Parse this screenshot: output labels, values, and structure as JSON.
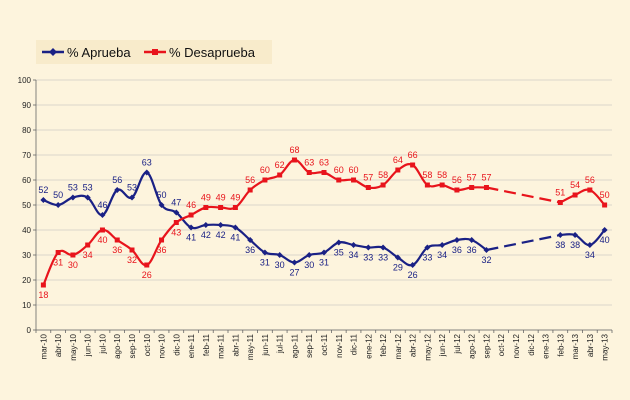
{
  "chart_data": {
    "type": "line",
    "title": "",
    "xlabel": "",
    "ylabel": "",
    "ylim": [
      0,
      100
    ],
    "yticks": [
      0,
      10,
      20,
      30,
      40,
      50,
      60,
      70,
      80,
      90,
      100
    ],
    "grid": true,
    "legend_position": "top-left",
    "categories": [
      "mar-10",
      "abr-10",
      "may-10",
      "jun-10",
      "jul-10",
      "ago-10",
      "sep-10",
      "oct-10",
      "nov-10",
      "dic-10",
      "ene-11",
      "feb-11",
      "mar-11",
      "abr-11",
      "may-11",
      "jun-11",
      "jul-11",
      "ago-11",
      "sep-11",
      "oct-11",
      "nov-11",
      "dic-11",
      "ene-12",
      "feb-12",
      "mar-12",
      "abr-12",
      "may-12",
      "jun-12",
      "jul-12",
      "ago-12",
      "sep-12",
      "oct-12",
      "nov-12",
      "dic-12",
      "ene-13",
      "feb-13",
      "mar-13",
      "abr-13",
      "may-13"
    ],
    "series": [
      {
        "name": "% Aprueba",
        "color": "#1a2185",
        "values": [
          52,
          50,
          53,
          53,
          46,
          56,
          53,
          63,
          50,
          47,
          41,
          42,
          42,
          41,
          36,
          31,
          30,
          27,
          30,
          31,
          35,
          34,
          33,
          33,
          29,
          26,
          33,
          34,
          36,
          36,
          32,
          null,
          null,
          null,
          null,
          38,
          38,
          34,
          40
        ],
        "data_labels": [
          {
            "i": 0,
            "v": "52"
          },
          {
            "i": 1,
            "v": "50"
          },
          {
            "i": 2,
            "v": "53"
          },
          {
            "i": 3,
            "v": "53"
          },
          {
            "i": 4,
            "v": "46"
          },
          {
            "i": 5,
            "v": "56"
          },
          {
            "i": 6,
            "v": "53"
          },
          {
            "i": 7,
            "v": "63"
          },
          {
            "i": 8,
            "v": "50"
          },
          {
            "i": 9,
            "v": "47"
          },
          {
            "i": 10,
            "v": "41"
          },
          {
            "i": 11,
            "v": "42"
          },
          {
            "i": 12,
            "v": "42"
          },
          {
            "i": 13,
            "v": "41"
          },
          {
            "i": 14,
            "v": "36"
          },
          {
            "i": 15,
            "v": "31"
          },
          {
            "i": 16,
            "v": "30"
          },
          {
            "i": 17,
            "v": "27"
          },
          {
            "i": 18,
            "v": "30"
          },
          {
            "i": 19,
            "v": "31"
          },
          {
            "i": 20,
            "v": "35"
          },
          {
            "i": 21,
            "v": "34"
          },
          {
            "i": 22,
            "v": "33"
          },
          {
            "i": 23,
            "v": "33"
          },
          {
            "i": 24,
            "v": "29"
          },
          {
            "i": 25,
            "v": "26"
          },
          {
            "i": 26,
            "v": "33"
          },
          {
            "i": 27,
            "v": "34"
          },
          {
            "i": 28,
            "v": "36"
          },
          {
            "i": 29,
            "v": "36"
          },
          {
            "i": 30,
            "v": "32"
          },
          {
            "i": 35,
            "v": "38"
          },
          {
            "i": 36,
            "v": "38"
          },
          {
            "i": 37,
            "v": "34"
          },
          {
            "i": 38,
            "v": "40"
          }
        ]
      },
      {
        "name": "% Desaprueba",
        "color": "#e8141c",
        "values": [
          18,
          31,
          30,
          34,
          40,
          36,
          32,
          26,
          36,
          43,
          46,
          49,
          49,
          49,
          56,
          60,
          62,
          68,
          63,
          63,
          60,
          60,
          57,
          58,
          64,
          66,
          58,
          58,
          56,
          57,
          57,
          null,
          null,
          null,
          null,
          51,
          54,
          56,
          50
        ],
        "data_labels": [
          {
            "i": 0,
            "v": "18"
          },
          {
            "i": 1,
            "v": "31"
          },
          {
            "i": 2,
            "v": "30"
          },
          {
            "i": 3,
            "v": "34"
          },
          {
            "i": 4,
            "v": "40"
          },
          {
            "i": 5,
            "v": "36"
          },
          {
            "i": 6,
            "v": "32"
          },
          {
            "i": 7,
            "v": "26"
          },
          {
            "i": 8,
            "v": "36"
          },
          {
            "i": 9,
            "v": "43"
          },
          {
            "i": 10,
            "v": "46"
          },
          {
            "i": 11,
            "v": "49"
          },
          {
            "i": 12,
            "v": "49"
          },
          {
            "i": 13,
            "v": "49"
          },
          {
            "i": 14,
            "v": "56"
          },
          {
            "i": 15,
            "v": "60"
          },
          {
            "i": 16,
            "v": "62"
          },
          {
            "i": 17,
            "v": "68"
          },
          {
            "i": 18,
            "v": "63"
          },
          {
            "i": 19,
            "v": "63"
          },
          {
            "i": 20,
            "v": "60"
          },
          {
            "i": 21,
            "v": "60"
          },
          {
            "i": 22,
            "v": "57"
          },
          {
            "i": 23,
            "v": "58"
          },
          {
            "i": 24,
            "v": "64"
          },
          {
            "i": 25,
            "v": "66"
          },
          {
            "i": 26,
            "v": "58"
          },
          {
            "i": 27,
            "v": "58"
          },
          {
            "i": 28,
            "v": "56"
          },
          {
            "i": 29,
            "v": "57"
          },
          {
            "i": 30,
            "v": "57"
          },
          {
            "i": 35,
            "v": "51"
          },
          {
            "i": 36,
            "v": "54"
          },
          {
            "i": 37,
            "v": "56"
          },
          {
            "i": 38,
            "v": "50"
          }
        ]
      }
    ],
    "dashed_segment": {
      "from_index": 30,
      "to_index": 35
    }
  }
}
